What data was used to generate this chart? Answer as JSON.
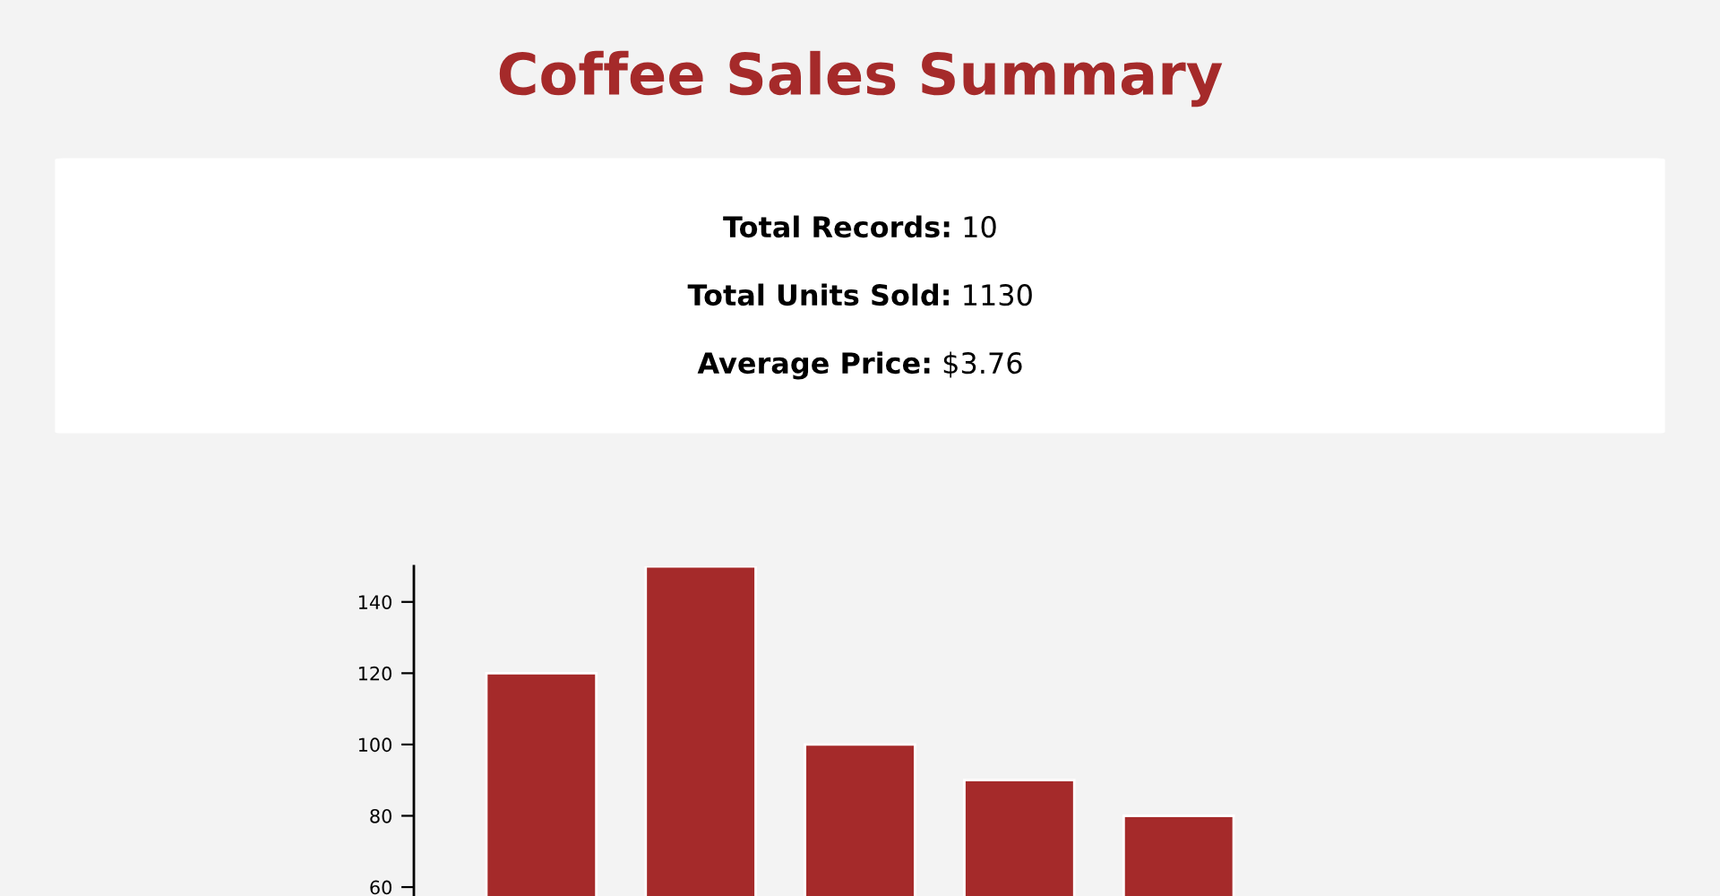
{
  "chart_data": [
    {
      "type": "other",
      "title": "Coffee Sales Summary",
      "annotations": [
        "Total Records: 10",
        "Total Units Sold: 1130",
        "Average Price: $3.76"
      ]
    },
    {
      "type": "bar",
      "categories": [
        null,
        null,
        null,
        null,
        null
      ],
      "values": [
        120,
        150,
        100,
        90,
        80
      ],
      "color": "#a52a2a",
      "ylim": [
        57.5,
        150
      ],
      "yticks": [
        60,
        80,
        100,
        120,
        140
      ],
      "tick_labels": "y",
      "grid": false
    }
  ]
}
